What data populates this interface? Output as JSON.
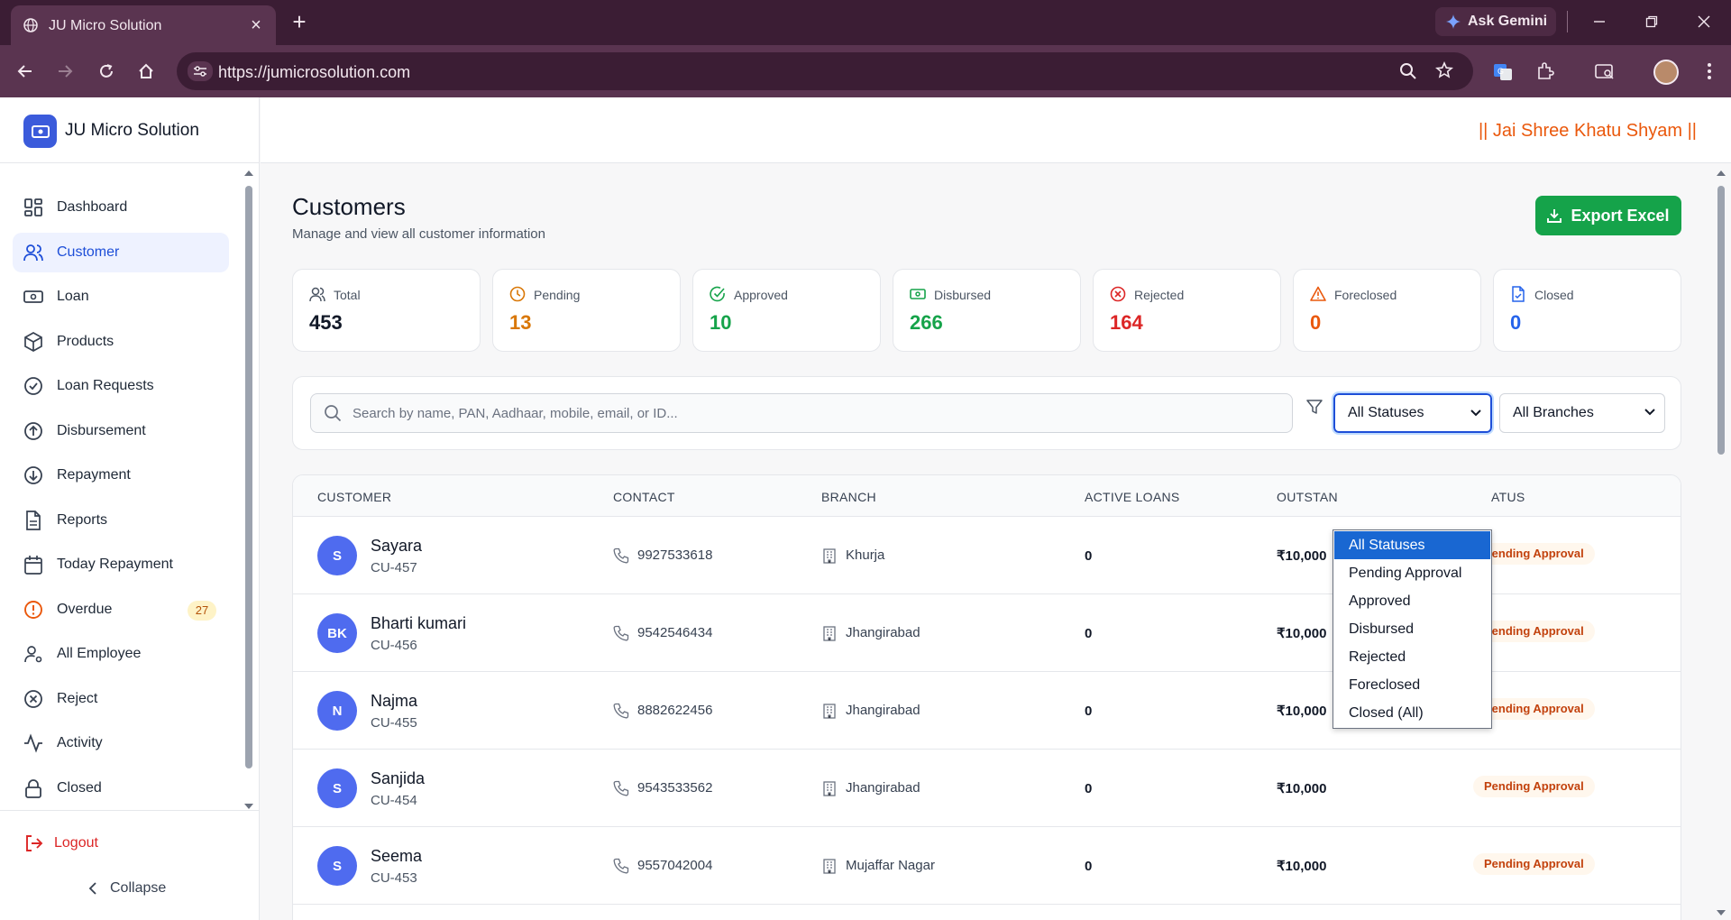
{
  "browser": {
    "tab_title": "JU Micro Solution",
    "url": "https://jumicrosolution.com",
    "ask_gemini": "Ask Gemini"
  },
  "app": {
    "brand": "JU Micro Solution",
    "motto": "|| Jai Shree Khatu Shyam ||",
    "accent_color": "#3b5bdb"
  },
  "sidebar": {
    "items": [
      {
        "label": "Dashboard",
        "icon": "grid-icon"
      },
      {
        "label": "Customer",
        "icon": "users-icon",
        "active": true
      },
      {
        "label": "Loan",
        "icon": "banknote-icon"
      },
      {
        "label": "Products",
        "icon": "box-icon"
      },
      {
        "label": "Loan Requests",
        "icon": "check-circle-icon"
      },
      {
        "label": "Disbursement",
        "icon": "arrow-up-circle-icon"
      },
      {
        "label": "Repayment",
        "icon": "arrow-down-circle-icon"
      },
      {
        "label": "Reports",
        "icon": "file-icon"
      },
      {
        "label": "Today Repayment",
        "icon": "calendar-icon"
      },
      {
        "label": "Overdue",
        "icon": "alert-circle-icon",
        "badge": "27"
      },
      {
        "label": "All Employee",
        "icon": "user-cog-icon"
      },
      {
        "label": "Reject",
        "icon": "x-circle-icon"
      },
      {
        "label": "Activity",
        "icon": "activity-icon"
      },
      {
        "label": "Closed",
        "icon": "lock-icon"
      }
    ],
    "logout": "Logout",
    "collapse": "Collapse"
  },
  "page": {
    "title": "Customers",
    "subtitle": "Manage and view all customer information",
    "export_label": "Export Excel"
  },
  "stats": [
    {
      "label": "Total",
      "value": "453",
      "color": "#111827",
      "icon": "users-icon"
    },
    {
      "label": "Pending",
      "value": "13",
      "color": "#d97706",
      "icon": "clock-icon"
    },
    {
      "label": "Approved",
      "value": "10",
      "color": "#16a34a",
      "icon": "check-circle-icon"
    },
    {
      "label": "Disbursed",
      "value": "266",
      "color": "#16a34a",
      "icon": "banknote-icon"
    },
    {
      "label": "Rejected",
      "value": "164",
      "color": "#dc2626",
      "icon": "x-circle-icon"
    },
    {
      "label": "Foreclosed",
      "value": "0",
      "color": "#ea580c",
      "icon": "warning-icon"
    },
    {
      "label": "Closed",
      "value": "0",
      "color": "#2563eb",
      "icon": "file-check-icon"
    }
  ],
  "filters": {
    "search_placeholder": "Search by name, PAN, Aadhaar, mobile, email, or ID...",
    "status_selected": "All Statuses",
    "branch_selected": "All Branches",
    "status_options": [
      "All Statuses",
      "Pending Approval",
      "Approved",
      "Disbursed",
      "Rejected",
      "Foreclosed",
      "Closed (All)"
    ]
  },
  "table": {
    "columns": [
      "CUSTOMER",
      "CONTACT",
      "BRANCH",
      "ACTIVE LOANS",
      "OUTSTAN",
      "ATUS"
    ],
    "rows": [
      {
        "initials": "S",
        "name": "Sayara",
        "id": "CU-457",
        "phone": "9927533618",
        "branch": "Khurja",
        "active_loans": "0",
        "outstanding": "₹10,000",
        "status": "Pending Approval"
      },
      {
        "initials": "BK",
        "name": "Bharti kumari",
        "id": "CU-456",
        "phone": "9542546434",
        "branch": "Jhangirabad",
        "active_loans": "0",
        "outstanding": "₹10,000",
        "status": "Pending Approval"
      },
      {
        "initials": "N",
        "name": "Najma",
        "id": "CU-455",
        "phone": "8882622456",
        "branch": "Jhangirabad",
        "active_loans": "0",
        "outstanding": "₹10,000",
        "status": "Pending Approval"
      },
      {
        "initials": "S",
        "name": "Sanjida",
        "id": "CU-454",
        "phone": "9543533562",
        "branch": "Jhangirabad",
        "active_loans": "0",
        "outstanding": "₹10,000",
        "status": "Pending Approval"
      },
      {
        "initials": "S",
        "name": "Seema",
        "id": "CU-453",
        "phone": "9557042004",
        "branch": "Mujaffar Nagar",
        "active_loans": "0",
        "outstanding": "₹10,000",
        "status": "Pending Approval"
      }
    ]
  }
}
